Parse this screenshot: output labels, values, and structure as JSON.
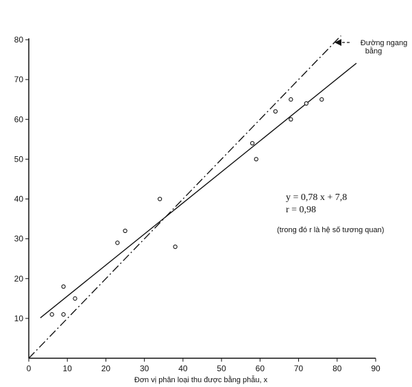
{
  "chart_data": {
    "type": "scatter",
    "x_ticks": [
      "0",
      "10",
      "20",
      "30",
      "40",
      "50",
      "60",
      "70",
      "80",
      "90"
    ],
    "y_ticks": [
      "10",
      "20",
      "30",
      "40",
      "50",
      "60",
      "70",
      "80"
    ],
    "xlim": [
      0,
      90
    ],
    "ylim": [
      0,
      80
    ],
    "xlabel": "Đơn vị phân loại thu được bằng phẫu, x",
    "points": [
      {
        "x": 6,
        "y": 11
      },
      {
        "x": 9,
        "y": 18
      },
      {
        "x": 9,
        "y": 11
      },
      {
        "x": 12,
        "y": 15
      },
      {
        "x": 23,
        "y": 29
      },
      {
        "x": 25,
        "y": 32
      },
      {
        "x": 34,
        "y": 40
      },
      {
        "x": 38,
        "y": 28
      },
      {
        "x": 58,
        "y": 54
      },
      {
        "x": 59,
        "y": 50
      },
      {
        "x": 64,
        "y": 62
      },
      {
        "x": 68,
        "y": 65
      },
      {
        "x": 68,
        "y": 60
      },
      {
        "x": 72,
        "y": 64
      },
      {
        "x": 76,
        "y": 65
      }
    ],
    "regression_line": {
      "slope": 0.78,
      "intercept": 7.8,
      "x_range": [
        3,
        85
      ]
    },
    "reference_line": {
      "slope": 1,
      "intercept": 0,
      "x_range": [
        0,
        81
      ]
    },
    "annotations": {
      "reference_label_1": "Đường ngang",
      "reference_label_2": "bằng",
      "equation": "y = 0,78 x + 7,8",
      "correlation": "r = 0,98",
      "note": "(trong đó r là hệ số tương quan)"
    }
  }
}
